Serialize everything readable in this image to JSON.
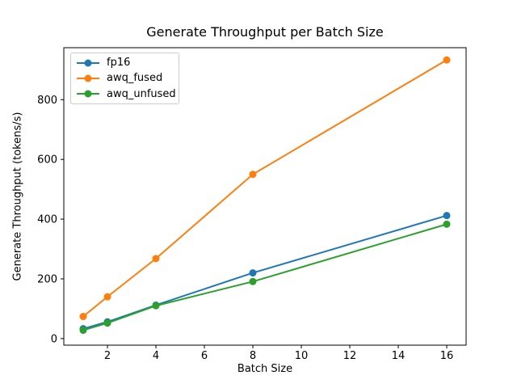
{
  "figure": {
    "background": "#ffffff",
    "frame_color": "#000000",
    "text_color": "#000000"
  },
  "chart_data": {
    "type": "line",
    "title": "Generate Throughput per Batch Size",
    "xlabel": "Batch Size",
    "ylabel": "Generate Throughput (tokens/s)",
    "x": [
      1,
      2,
      4,
      8,
      16
    ],
    "series": [
      {
        "name": "fp16",
        "color": "#1f77b4",
        "values": [
          33,
          56,
          112,
          220,
          412
        ]
      },
      {
        "name": "awq_fused",
        "color": "#ff7f0e",
        "values": [
          74,
          140,
          268,
          550,
          933
        ]
      },
      {
        "name": "awq_unfused",
        "color": "#2ca02c",
        "values": [
          28,
          52,
          110,
          191,
          383
        ]
      }
    ],
    "xlim": [
      0.2,
      16.8
    ],
    "ylim": [
      -22,
      974
    ],
    "xticks": [
      2,
      4,
      6,
      8,
      10,
      12,
      14,
      16
    ],
    "yticks": [
      0,
      200,
      400,
      600,
      800
    ],
    "grid": false,
    "legend_position": "upper left",
    "marker": "circle",
    "line_width": 2,
    "marker_radius": 4.5
  }
}
